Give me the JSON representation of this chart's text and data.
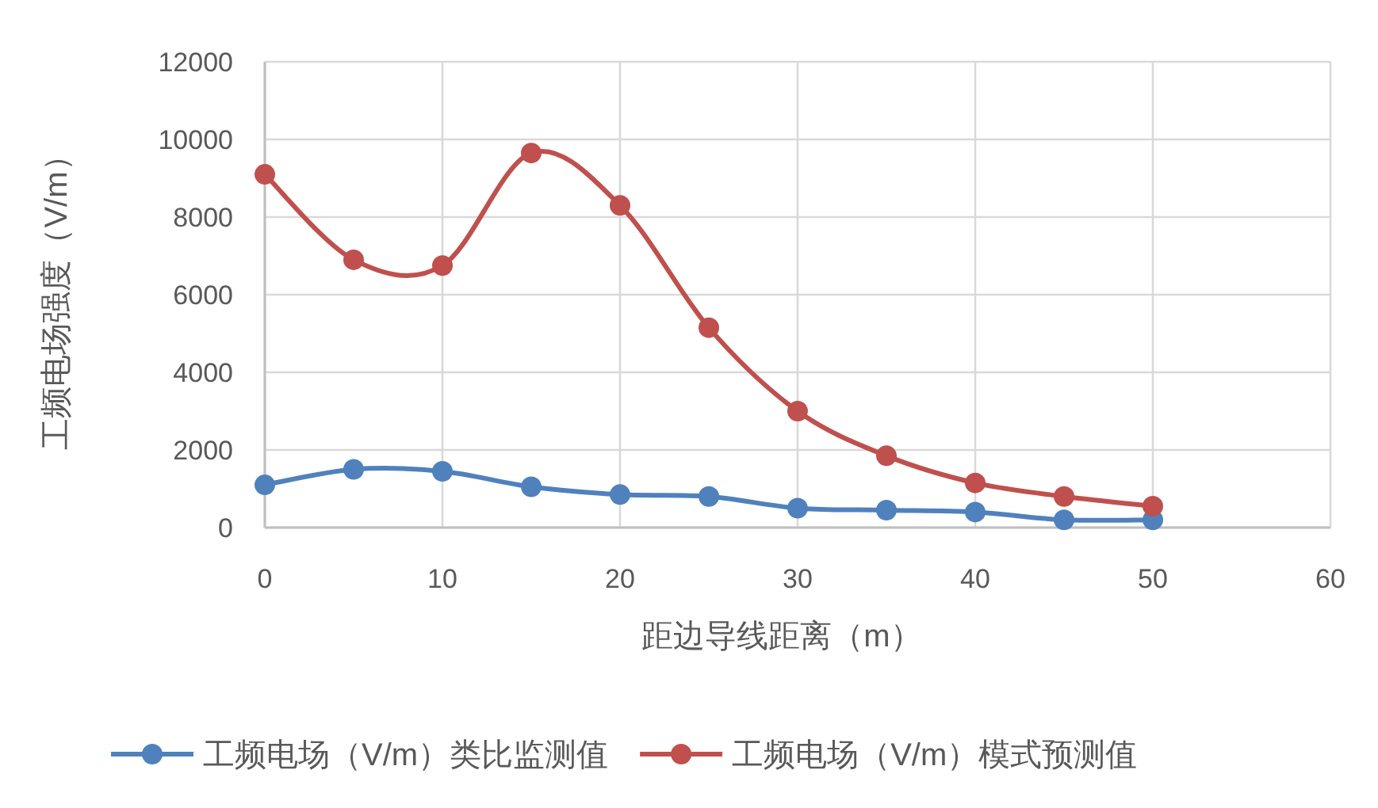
{
  "chart_data": {
    "type": "line",
    "xlabel": "距边导线距离（m）",
    "ylabel": "工频电场强度（V/m）",
    "x": [
      0,
      5,
      10,
      15,
      20,
      25,
      30,
      35,
      40,
      45,
      50
    ],
    "series": [
      {
        "name": "工频电场（V/m）类比监测值",
        "color": "#4f81bd",
        "values": [
          1100,
          1500,
          1450,
          1050,
          850,
          800,
          500,
          450,
          400,
          200,
          200
        ]
      },
      {
        "name": "工频电场（V/m）模式预测值",
        "color": "#c0504d",
        "values": [
          9100,
          6900,
          6750,
          9650,
          8300,
          5150,
          3000,
          1850,
          1150,
          800,
          550
        ]
      }
    ],
    "xlim": [
      0,
      60
    ],
    "xticks": [
      0,
      10,
      20,
      30,
      40,
      50,
      60
    ],
    "ylim": [
      0,
      12000
    ],
    "yticks": [
      0,
      2000,
      4000,
      6000,
      8000,
      10000,
      12000
    ],
    "grid": true,
    "legend": "bottom",
    "marker": "circle",
    "line_style": "solid"
  }
}
